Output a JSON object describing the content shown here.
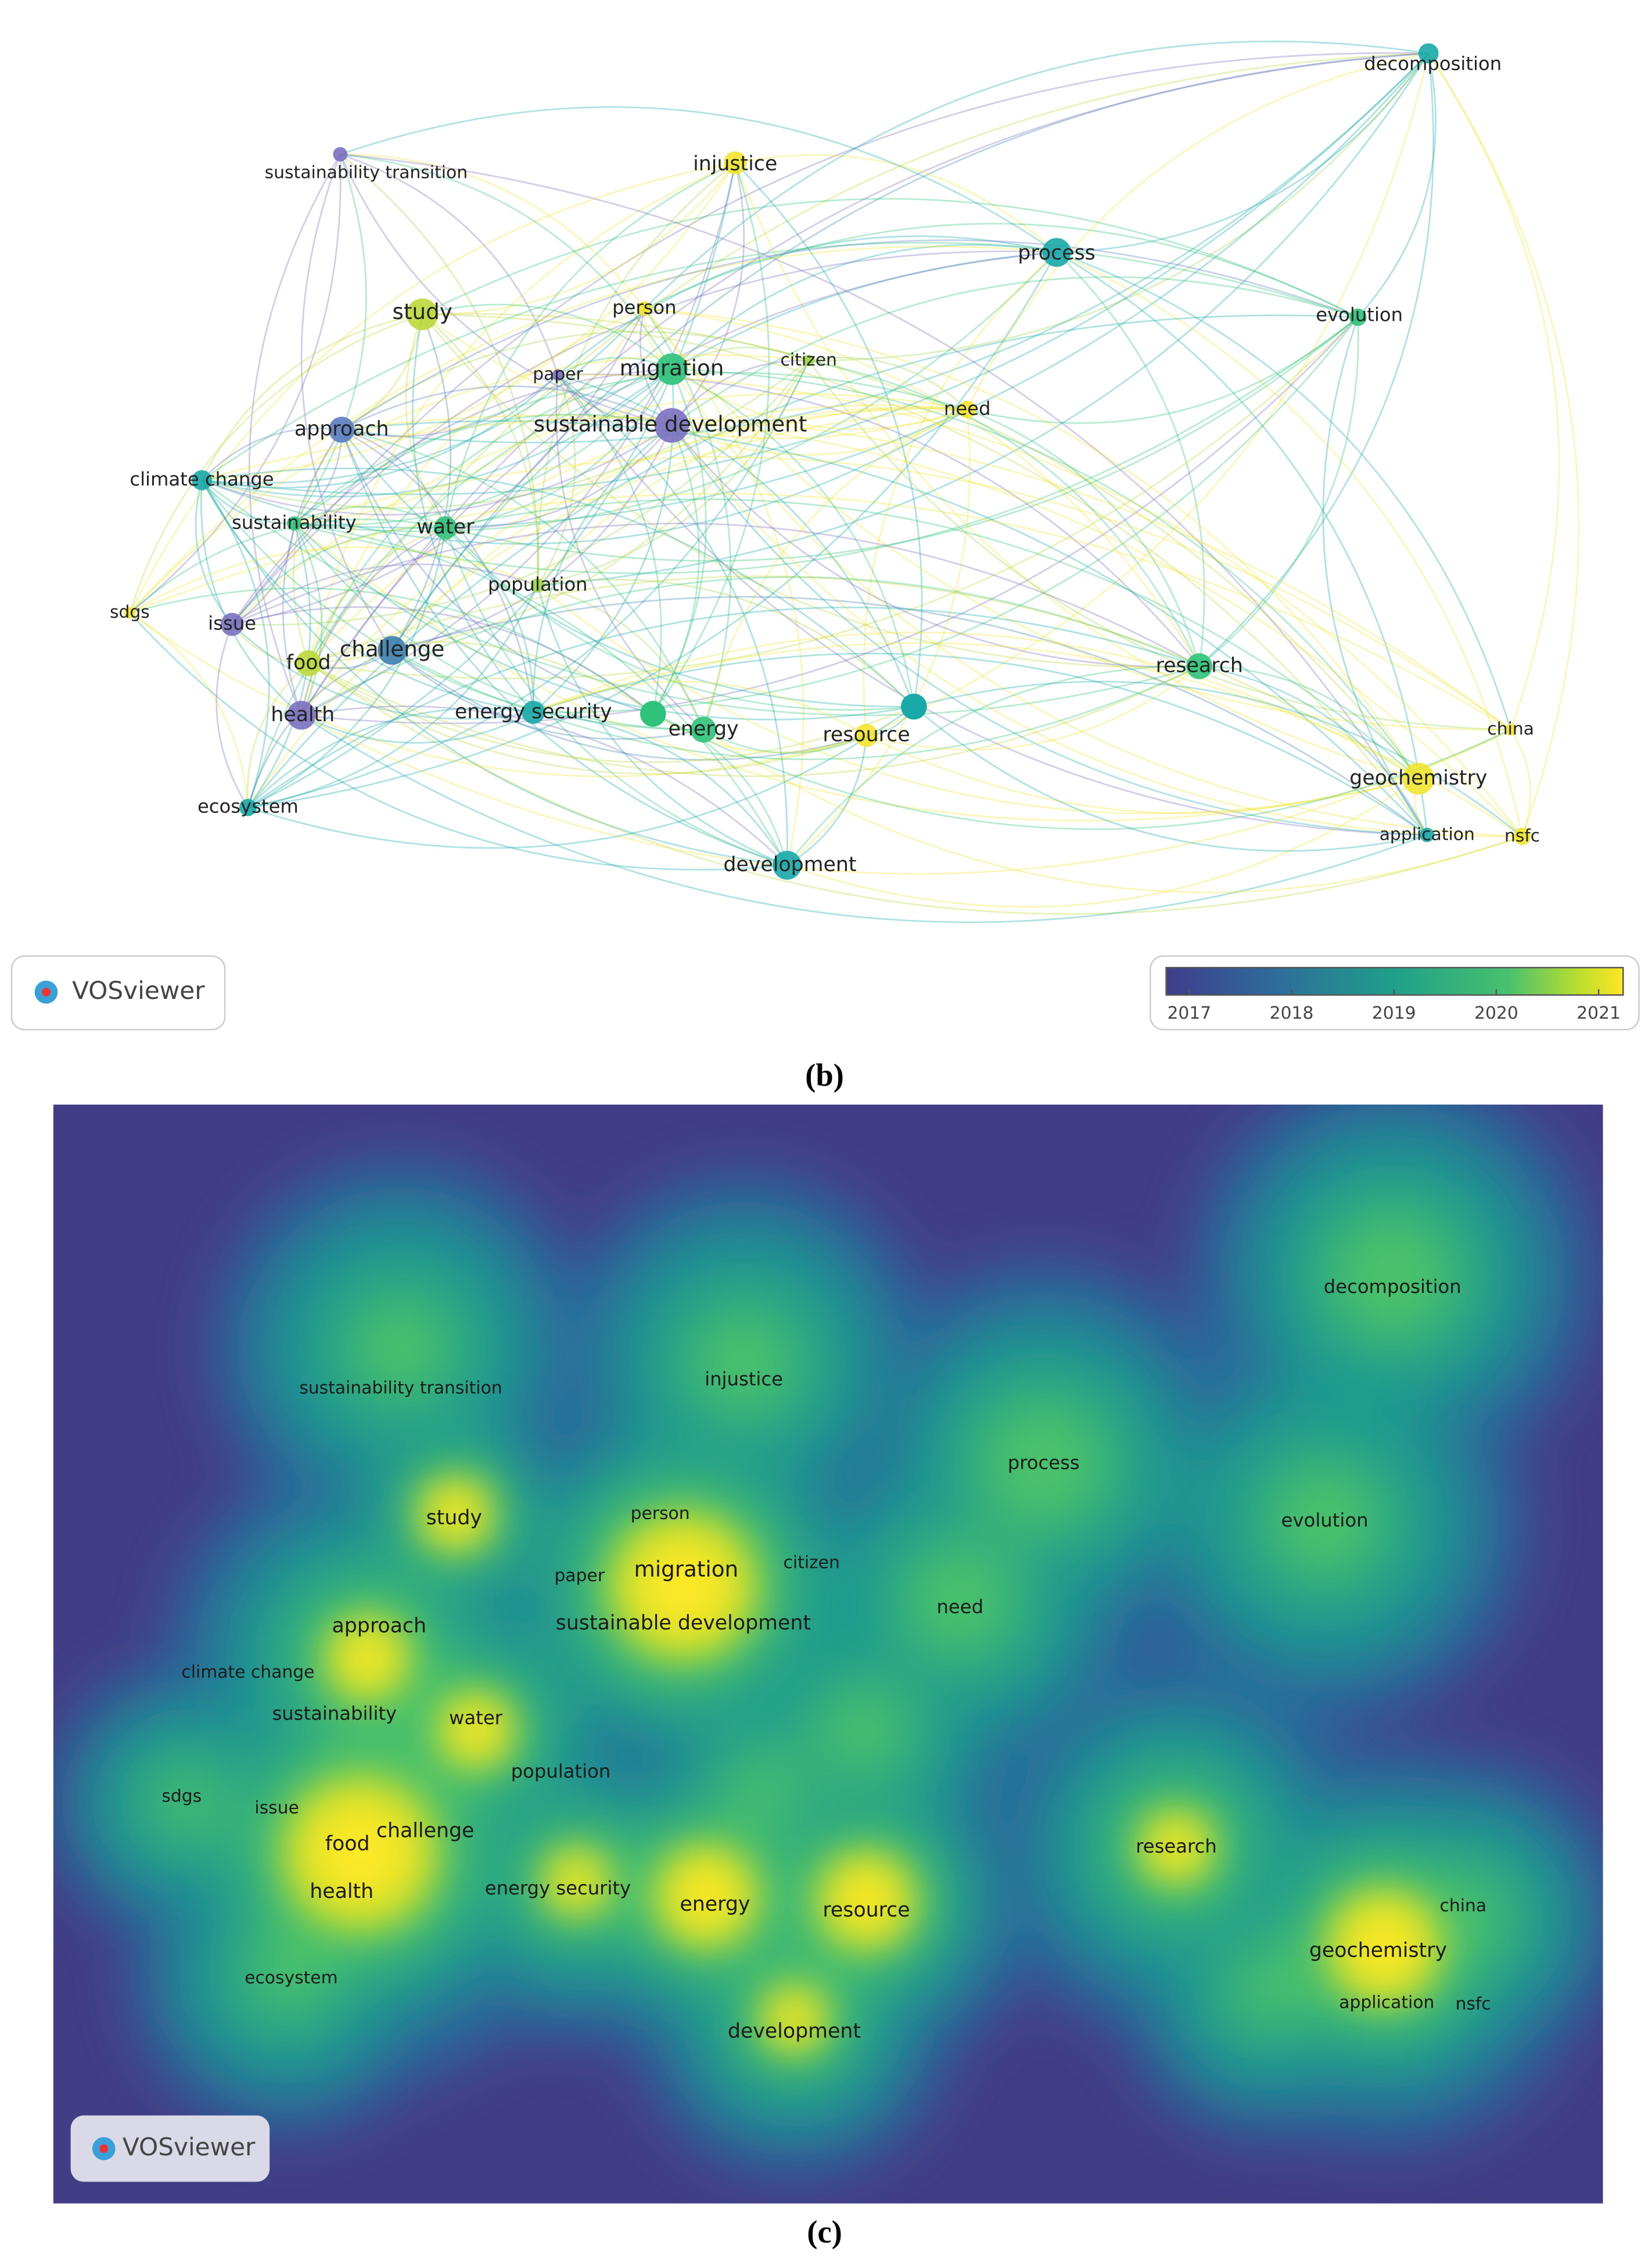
{
  "panel_b": {
    "nodes": [
      {
        "label": "decomposition"
      },
      {
        "label": "injustice"
      },
      {
        "label": "sustainability transition"
      },
      {
        "label": "process"
      },
      {
        "label": "study"
      },
      {
        "label": "person"
      },
      {
        "label": "evolution"
      },
      {
        "label": "migration"
      },
      {
        "label": "citizen"
      },
      {
        "label": "paper"
      },
      {
        "label": "need"
      },
      {
        "label": "approach"
      },
      {
        "label": "sustainable development"
      },
      {
        "label": "climate change"
      },
      {
        "label": "sustainability"
      },
      {
        "label": "water"
      },
      {
        "label": "population"
      },
      {
        "label": "sdgs"
      },
      {
        "label": "issue"
      },
      {
        "label": "challenge"
      },
      {
        "label": "research"
      },
      {
        "label": "food"
      },
      {
        "label": "health"
      },
      {
        "label": "energy security"
      },
      {
        "label": "energy"
      },
      {
        "label": "resource"
      },
      {
        "label": "china"
      },
      {
        "label": "geochemistry"
      },
      {
        "label": "ecosystem"
      },
      {
        "label": "application"
      },
      {
        "label": "nsfc"
      },
      {
        "label": "development"
      }
    ],
    "logo": "VOSviewer",
    "legend": {
      "ticks": [
        2017,
        2018,
        2019,
        2020,
        2021
      ]
    },
    "caption": "(b)"
  },
  "panel_c": {
    "labels": [
      {
        "label": "decomposition"
      },
      {
        "label": "sustainability transition"
      },
      {
        "label": "injustice"
      },
      {
        "label": "process"
      },
      {
        "label": "study"
      },
      {
        "label": "person"
      },
      {
        "label": "evolution"
      },
      {
        "label": "migration"
      },
      {
        "label": "paper"
      },
      {
        "label": "citizen"
      },
      {
        "label": "need"
      },
      {
        "label": "approach"
      },
      {
        "label": "sustainable development"
      },
      {
        "label": "climate change"
      },
      {
        "label": "sustainability"
      },
      {
        "label": "water"
      },
      {
        "label": "population"
      },
      {
        "label": "sdgs"
      },
      {
        "label": "issue"
      },
      {
        "label": "challenge"
      },
      {
        "label": "food"
      },
      {
        "label": "research"
      },
      {
        "label": "health"
      },
      {
        "label": "energy security"
      },
      {
        "label": "energy"
      },
      {
        "label": "resource"
      },
      {
        "label": "china"
      },
      {
        "label": "geochemistry"
      },
      {
        "label": "application"
      },
      {
        "label": "nsfc"
      },
      {
        "label": "ecosystem"
      },
      {
        "label": "development"
      }
    ],
    "logo": "VOSviewer",
    "caption": "(c)"
  }
}
